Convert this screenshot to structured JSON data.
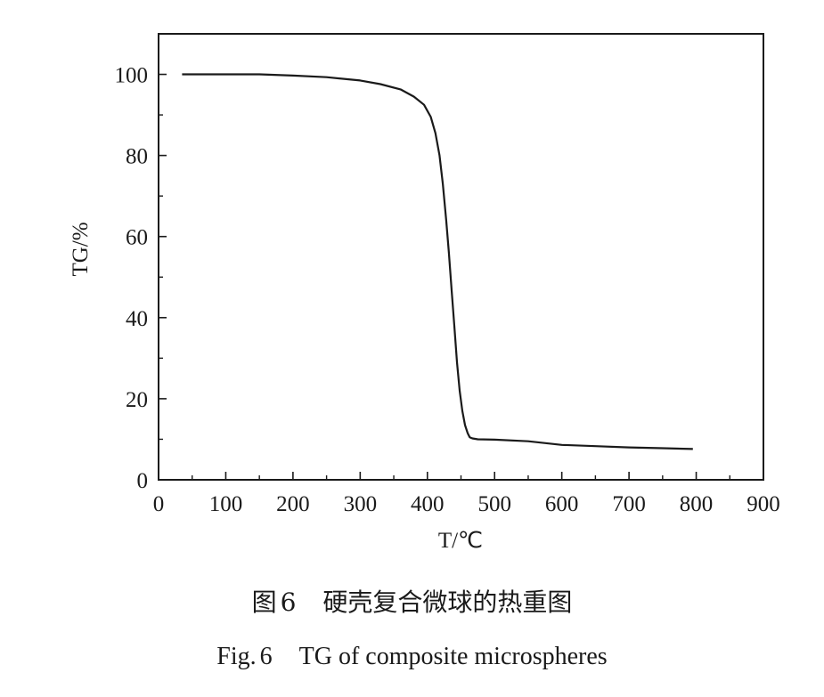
{
  "chart_data": {
    "type": "line",
    "xlabel": "T/℃",
    "ylabel": "TG/%",
    "xlim": [
      0,
      900
    ],
    "ylim": [
      0,
      110
    ],
    "xticks": [
      0,
      100,
      200,
      300,
      400,
      500,
      600,
      700,
      800,
      900
    ],
    "yticks": [
      0,
      20,
      40,
      60,
      80,
      100
    ],
    "grid": false,
    "series": [
      {
        "x": [
          35,
          100,
          150,
          200,
          250,
          300,
          330,
          360,
          380,
          395,
          405,
          412,
          418,
          423,
          428,
          432,
          436,
          440,
          444,
          448,
          452,
          456,
          460,
          463,
          467,
          475,
          500,
          550,
          600,
          650,
          700,
          750,
          795
        ],
        "y": [
          100,
          100,
          100,
          99.7,
          99.3,
          98.5,
          97.6,
          96.3,
          94.5,
          92.5,
          89.5,
          85.5,
          80,
          73,
          64,
          56,
          47,
          38,
          29,
          22,
          17,
          13.5,
          11.5,
          10.5,
          10.2,
          10,
          9.9,
          9.5,
          8.6,
          8.3,
          8,
          7.8,
          7.6
        ]
      }
    ]
  },
  "caption": {
    "cn_prefix": "图",
    "cn_number": "6",
    "cn_text": "硬壳复合微球的热重图",
    "en_prefix": "Fig.",
    "en_number": "6",
    "en_text": "TG of composite microspheres"
  }
}
